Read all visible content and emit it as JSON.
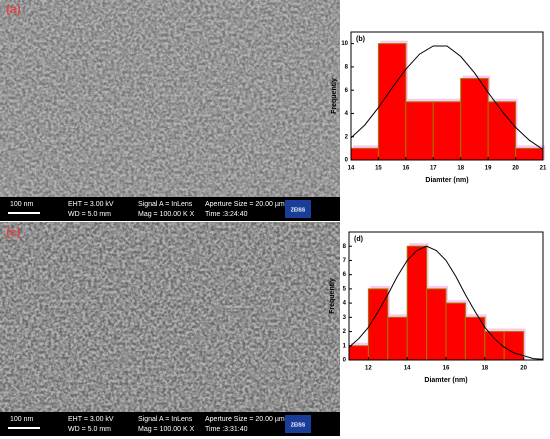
{
  "images": [
    {
      "panel_label": "(a)",
      "scale": "100 nm",
      "eht": "EHT = 3.00 kV",
      "wd": "WD = 5.0 mm",
      "signal": "Signal A = InLens",
      "mag": "Mag = 100.00 K X",
      "aperture": "Aperture Size = 20.00 µm",
      "time": "Time :3:24:40",
      "logo": "ZEISS"
    },
    {
      "panel_label": "(c)",
      "scale": "100 nm",
      "eht": "EHT = 3.00 kV",
      "wd": "WD = 5.0 mm",
      "signal": "Signal A = InLens",
      "mag": "Mag = 100.00 K X",
      "aperture": "Aperture Size = 20.00 µm",
      "time": "Time :3:31:40",
      "logo": "ZEISS"
    }
  ],
  "chart_data": [
    {
      "type": "histogram",
      "panel_label": "(b)",
      "x_label": "Diamter (nm)",
      "y_label": "Frequently",
      "bins": [
        14,
        15,
        16,
        17,
        18,
        19,
        20,
        21
      ],
      "counts": [
        1,
        10,
        5,
        5,
        7,
        5,
        1
      ],
      "color": "#ff0000",
      "edge_color": "#a07800",
      "fit": {
        "color": "#000000",
        "x": [
          14,
          14.5,
          15,
          15.5,
          16,
          16.5,
          17,
          17.5,
          18,
          18.5,
          19,
          19.5,
          20,
          20.5,
          21
        ],
        "values": [
          1.9,
          3.0,
          4.5,
          6.2,
          7.8,
          9.1,
          9.8,
          9.8,
          8.9,
          7.5,
          5.8,
          4.2,
          2.8,
          1.7,
          0.9
        ]
      },
      "xlim": [
        14,
        21
      ],
      "xticks": [
        14,
        15,
        16,
        17,
        18,
        19,
        20,
        21
      ],
      "ylim": [
        0,
        11
      ],
      "yticks": [
        0,
        2,
        4,
        6,
        8,
        10
      ]
    },
    {
      "type": "histogram",
      "panel_label": "(d)",
      "x_label": "Diamter (nm)",
      "y_label": "Frequently",
      "bins": [
        11,
        12,
        13,
        14,
        15,
        16,
        17,
        18,
        19,
        20
      ],
      "counts": [
        1,
        5,
        3,
        8,
        5,
        4,
        3,
        2,
        2
      ],
      "color": "#ff0000",
      "edge_color": "#a07800",
      "fit": {
        "color": "#000000",
        "x": [
          11,
          11.5,
          12,
          12.5,
          13,
          13.5,
          14,
          14.5,
          15,
          15.5,
          16,
          16.5,
          17,
          17.5,
          18,
          18.5,
          19,
          19.5,
          20,
          20.5,
          21
        ],
        "values": [
          0.9,
          1.5,
          2.3,
          3.4,
          4.6,
          5.9,
          7.0,
          7.7,
          8.0,
          7.7,
          7.0,
          5.9,
          4.6,
          3.4,
          2.3,
          1.5,
          0.9,
          0.5,
          0.3,
          0.1,
          0.05
        ]
      },
      "xlim": [
        11,
        21
      ],
      "xticks": [
        12,
        14,
        16,
        18,
        20
      ],
      "ylim": [
        0,
        9
      ],
      "yticks": [
        0,
        1,
        2,
        3,
        4,
        5,
        6,
        7,
        8
      ]
    }
  ]
}
